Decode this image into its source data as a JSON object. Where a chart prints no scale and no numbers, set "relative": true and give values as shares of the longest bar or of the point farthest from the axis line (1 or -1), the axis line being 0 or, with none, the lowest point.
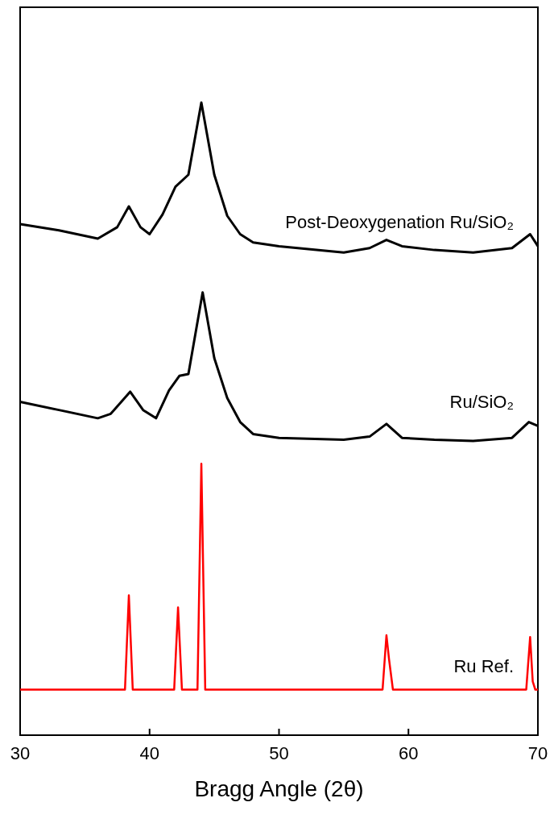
{
  "chart_data": {
    "type": "line",
    "relative": true,
    "xlabel": "Bragg Angle (2θ)",
    "xlim": [
      30,
      70
    ],
    "xticks": [
      30,
      40,
      50,
      60,
      70
    ],
    "tick_labels": "x",
    "grid": false,
    "line_style": "solid",
    "series": [
      {
        "name": "Post-Deoxygenation Ru/SiO₂",
        "color": "#000000",
        "x": [
          30,
          33,
          36,
          37.5,
          38.4,
          39.3,
          40,
          41,
          42,
          43,
          44,
          45,
          46,
          47,
          48,
          50,
          55,
          57,
          58.3,
          59.5,
          62,
          65,
          68,
          69.4,
          70
        ],
        "values": [
          0.808,
          0.798,
          0.785,
          0.803,
          0.836,
          0.803,
          0.792,
          0.823,
          0.867,
          0.886,
          1.0,
          0.886,
          0.821,
          0.792,
          0.779,
          0.773,
          0.763,
          0.77,
          0.783,
          0.773,
          0.767,
          0.763,
          0.77,
          0.792,
          0.773
        ]
      },
      {
        "name": "Ru/SiO₂",
        "color": "#000000",
        "x": [
          30,
          33,
          36,
          37,
          38.5,
          39.5,
          40.5,
          41.5,
          42.3,
          43,
          44.1,
          45,
          46,
          47,
          48,
          50,
          55,
          57,
          58.3,
          59.5,
          62,
          65,
          68,
          69.3,
          70
        ],
        "values": [
          0.527,
          0.514,
          0.501,
          0.508,
          0.543,
          0.514,
          0.501,
          0.545,
          0.568,
          0.571,
          0.7,
          0.596,
          0.533,
          0.495,
          0.476,
          0.47,
          0.467,
          0.472,
          0.492,
          0.47,
          0.467,
          0.465,
          0.47,
          0.495,
          0.489
        ]
      },
      {
        "name": "Ru Ref.",
        "color": "#ff0000",
        "x": [
          30,
          38.1,
          38.4,
          38.7,
          41.9,
          42.2,
          42.5,
          43.7,
          44.0,
          44.3,
          58.0,
          58.3,
          58.5,
          58.8,
          69.1,
          69.4,
          69.6,
          69.8,
          70
        ],
        "values": [
          0.072,
          0.072,
          0.221,
          0.072,
          0.072,
          0.202,
          0.072,
          0.072,
          0.429,
          0.072,
          0.072,
          0.158,
          0.12,
          0.072,
          0.072,
          0.155,
          0.085,
          0.072,
          0.072
        ]
      }
    ]
  }
}
